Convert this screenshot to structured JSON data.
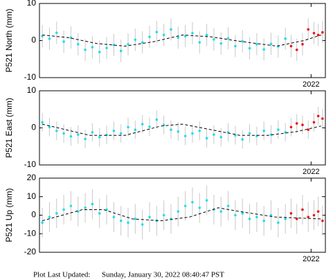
{
  "chart_data": [
    {
      "type": "scatter",
      "ylabel": "P521 North (mm)",
      "xlim": [
        2020.1,
        2022.1
      ],
      "xticks": [
        2022
      ],
      "ylim": [
        -10,
        10
      ],
      "yticks": [
        -10,
        0,
        10
      ],
      "series": [
        {
          "color": "#22ddee",
          "error": 3,
          "x": [
            2020.12,
            2020.17,
            2020.22,
            2020.27,
            2020.32,
            2020.37,
            2020.42,
            2020.47,
            2020.52,
            2020.57,
            2020.62,
            2020.67,
            2020.72,
            2020.77,
            2020.82,
            2020.87,
            2020.92,
            2020.97,
            2021.02,
            2021.07,
            2021.12,
            2021.17,
            2021.22,
            2021.27,
            2021.32,
            2021.37,
            2021.42,
            2021.47,
            2021.52,
            2021.57,
            2021.62,
            2021.67,
            2021.72,
            2021.77,
            2021.82
          ],
          "values": [
            1.2,
            0.5,
            2.1,
            -0.3,
            0.8,
            -1.0,
            -2.5,
            -1.8,
            -3.1,
            -2.0,
            -1.2,
            -2.8,
            -1.0,
            0.2,
            -0.5,
            1.0,
            2.3,
            1.5,
            3.0,
            0.8,
            1.2,
            2.0,
            -0.5,
            1.5,
            0.3,
            -0.8,
            0.6,
            -1.5,
            -0.2,
            -2.1,
            -1.0,
            -2.4,
            -0.9,
            -1.6,
            0.5
          ]
        },
        {
          "color": "#ee1111",
          "error": 3,
          "x": [
            2021.86,
            2021.9,
            2021.94,
            2021.98,
            2022.02,
            2022.05,
            2022.08
          ],
          "values": [
            -1.5,
            -2.5,
            -1,
            3,
            2,
            1.5,
            2.2
          ]
        }
      ],
      "trend": {
        "color": "#000000",
        "x": [
          2020.12,
          2020.3,
          2020.5,
          2020.7,
          2020.9,
          2021.1,
          2021.3,
          2021.5,
          2021.76,
          2021.95,
          2022.07
        ],
        "values": [
          1.5,
          0.8,
          -0.8,
          -1.5,
          -0.3,
          1.5,
          1,
          -0.2,
          -1.5,
          0,
          1.5
        ]
      }
    },
    {
      "type": "scatter",
      "ylabel": "P521 East (mm)",
      "xlim": [
        2020.1,
        2022.1
      ],
      "xticks": [
        2022
      ],
      "ylim": [
        -10,
        10
      ],
      "yticks": [
        -10,
        0,
        10
      ],
      "series": [
        {
          "color": "#22ddee",
          "error": 2.5,
          "x": [
            2020.12,
            2020.17,
            2020.22,
            2020.27,
            2020.32,
            2020.37,
            2020.42,
            2020.47,
            2020.52,
            2020.57,
            2020.62,
            2020.67,
            2020.72,
            2020.77,
            2020.82,
            2020.87,
            2020.92,
            2020.97,
            2021.02,
            2021.07,
            2021.12,
            2021.17,
            2021.22,
            2021.27,
            2021.32,
            2021.37,
            2021.42,
            2021.47,
            2021.52,
            2021.57,
            2021.62,
            2021.67,
            2021.72,
            2021.77,
            2021.82
          ],
          "values": [
            1.5,
            0.2,
            -0.8,
            -1.5,
            -2.3,
            -1.8,
            -3.0,
            -1.2,
            -2.5,
            -1.9,
            -0.8,
            -1.5,
            0.2,
            -0.5,
            1.0,
            0.3,
            2.2,
            0.8,
            -0.5,
            -1.0,
            -2.2,
            -1.5,
            -0.8,
            -2.8,
            -1.8,
            -2.5,
            -1.2,
            -2.0,
            -3.1,
            -1.5,
            -2.2,
            -0.8,
            -1.8,
            -0.5,
            -1.2
          ]
        },
        {
          "color": "#ee1111",
          "error": 2.5,
          "x": [
            2021.86,
            2021.9,
            2021.94,
            2021.98,
            2022.02,
            2022.05,
            2022.08
          ],
          "values": [
            0.2,
            1.2,
            0.8,
            -0.5,
            1.5,
            3.2,
            2.5
          ]
        }
      ],
      "trend": {
        "color": "#000000",
        "x": [
          2020.12,
          2020.45,
          2020.7,
          2020.95,
          2021.1,
          2021.3,
          2021.5,
          2021.7,
          2021.9,
          2022.07
        ],
        "values": [
          1,
          -2,
          -2,
          0.5,
          1,
          -0.5,
          -2,
          -2,
          -1,
          0.5
        ]
      }
    },
    {
      "type": "scatter",
      "ylabel": "P521 Up (mm)",
      "xlim": [
        2020.1,
        2022.1
      ],
      "xticks": [
        2022
      ],
      "ylim": [
        -20,
        20
      ],
      "yticks": [
        -20,
        -10,
        0,
        10,
        20
      ],
      "series": [
        {
          "color": "#22ddee",
          "error": 8,
          "x": [
            2020.12,
            2020.17,
            2020.22,
            2020.27,
            2020.32,
            2020.37,
            2020.42,
            2020.47,
            2020.52,
            2020.57,
            2020.62,
            2020.67,
            2020.72,
            2020.77,
            2020.82,
            2020.87,
            2020.92,
            2020.97,
            2021.02,
            2021.07,
            2021.12,
            2021.17,
            2021.22,
            2021.27,
            2021.32,
            2021.37,
            2021.42,
            2021.47,
            2021.52,
            2021.57,
            2021.62,
            2021.67,
            2021.72,
            2021.77,
            2021.82
          ],
          "values": [
            -4,
            -1,
            1,
            3,
            5,
            2,
            4,
            6,
            1,
            3,
            -1,
            -3,
            -4,
            -2,
            -5,
            -1,
            -3,
            0,
            -2,
            2,
            5,
            7,
            4,
            8,
            3,
            2,
            5,
            0,
            1,
            -2,
            -1,
            -3,
            0,
            -4,
            -2
          ]
        },
        {
          "color": "#ee1111",
          "error": 8,
          "x": [
            2021.86,
            2021.9,
            2021.94,
            2021.98,
            2022.02,
            2022.05,
            2022.08
          ],
          "values": [
            1,
            -2,
            3,
            -1,
            0,
            2,
            -3
          ]
        }
      ],
      "trend": {
        "color": "#000000",
        "x": [
          2020.12,
          2020.4,
          2020.55,
          2020.75,
          2020.95,
          2021.15,
          2021.35,
          2021.5,
          2021.75,
          2022.07
        ],
        "values": [
          -3,
          3,
          3,
          -2,
          -3,
          -1,
          4,
          2,
          -1,
          -2
        ]
      }
    }
  ],
  "footer": {
    "label": "Plot Last Updated:",
    "value": "Sunday, January 30, 2022 08:40:47 PST"
  }
}
